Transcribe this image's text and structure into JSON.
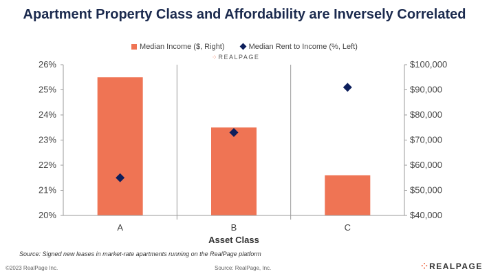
{
  "chart_data": {
    "type": "bar",
    "title": "Apartment Property Class and Affordability are Inversely Correlated",
    "xlabel": "Asset Class",
    "categories": [
      "A",
      "B",
      "C"
    ],
    "series": [
      {
        "name": "Median Income ($, Right)",
        "kind": "bar",
        "axis": "right",
        "color": "#ef7454",
        "values": [
          95000,
          75000,
          56000
        ]
      },
      {
        "name": "Median Rent to Income (%, Left)",
        "kind": "scatter",
        "marker": "diamond",
        "axis": "left",
        "color": "#0d1f5c",
        "values": [
          21.5,
          23.3,
          25.1
        ]
      }
    ],
    "y_left": {
      "min": 20,
      "max": 26,
      "ticks": [
        20,
        21,
        22,
        23,
        24,
        25,
        26
      ],
      "tick_labels": [
        "20%",
        "21%",
        "22%",
        "23%",
        "24%",
        "25%",
        "26%"
      ]
    },
    "y_right": {
      "min": 40000,
      "max": 100000,
      "ticks": [
        40000,
        50000,
        60000,
        70000,
        80000,
        90000,
        100000
      ],
      "tick_labels": [
        "$40,000",
        "$50,000",
        "$60,000",
        "$70,000",
        "$80,000",
        "$90,000",
        "$100,000"
      ]
    },
    "grid": false,
    "category_dividers": true,
    "legend_position": "top-center"
  },
  "legend": {
    "bar_label": "Median Income ($, Right)",
    "marker_label": "Median Rent to Income (%, Left)"
  },
  "chart_logo": {
    "mark": "⁘",
    "text": "REALPAGE"
  },
  "source_note": "Source: Signed new leases in market-rate apartments running on the RealPage platform",
  "footer": {
    "copyright": "©2023 RealPage Inc.",
    "source": "Source: RealPage, Inc.",
    "logo_mark": "⁘",
    "logo_text": "REALPAGE"
  }
}
